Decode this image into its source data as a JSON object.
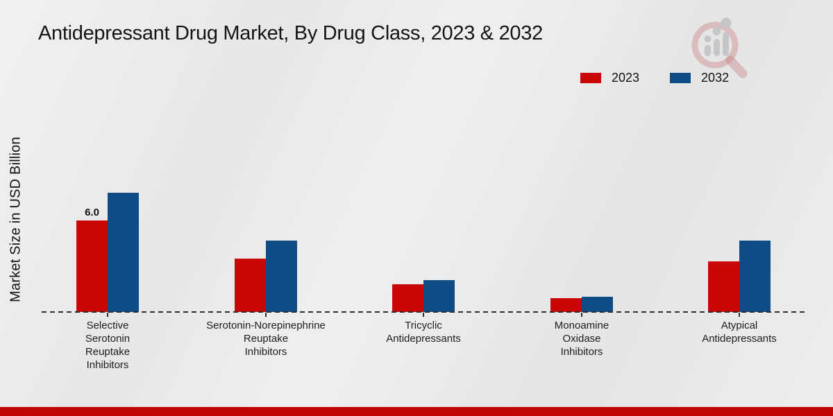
{
  "chart_data": {
    "type": "bar",
    "title": "Antidepressant Drug Market, By Drug Class, 2023 & 2032",
    "ylabel": "Market Size in USD Billion",
    "xlabel": "",
    "categories": [
      "Selective Serotonin Reuptake Inhibitors",
      "Serotonin-Norepinephrine Reuptake Inhibitors",
      "Tricyclic Antidepressants",
      "Monoamine Oxidase Inhibitors",
      "Atypical Antidepressants"
    ],
    "category_label_lines": [
      [
        "Selective",
        "Serotonin",
        "Reuptake",
        "Inhibitors"
      ],
      [
        "Serotonin-Norepinephrine",
        "Reuptake",
        "Inhibitors"
      ],
      [
        "Tricyclic",
        "Antidepressants"
      ],
      [
        "Monoamine",
        "Oxidase",
        "Inhibitors"
      ],
      [
        "Atypical",
        "Antidepressants"
      ]
    ],
    "series": [
      {
        "name": "2023",
        "color": "#c90707",
        "values": [
          6.0,
          3.5,
          1.8,
          0.9,
          3.3
        ]
      },
      {
        "name": "2032",
        "color": "#0f4c85",
        "values": [
          7.8,
          4.7,
          2.1,
          1.0,
          4.7
        ]
      }
    ],
    "bar_labels": [
      {
        "series_index": 0,
        "category_index": 0,
        "text": "6.0"
      }
    ],
    "ylim": [
      0,
      8.5
    ],
    "yticks_visible": false,
    "grid": false,
    "baseline_style": "dashed",
    "legend_position": "top-right"
  },
  "footer": {
    "accent_color": "#c00505"
  },
  "logo": {
    "icon": "magnifier-bar-chart-logo"
  }
}
